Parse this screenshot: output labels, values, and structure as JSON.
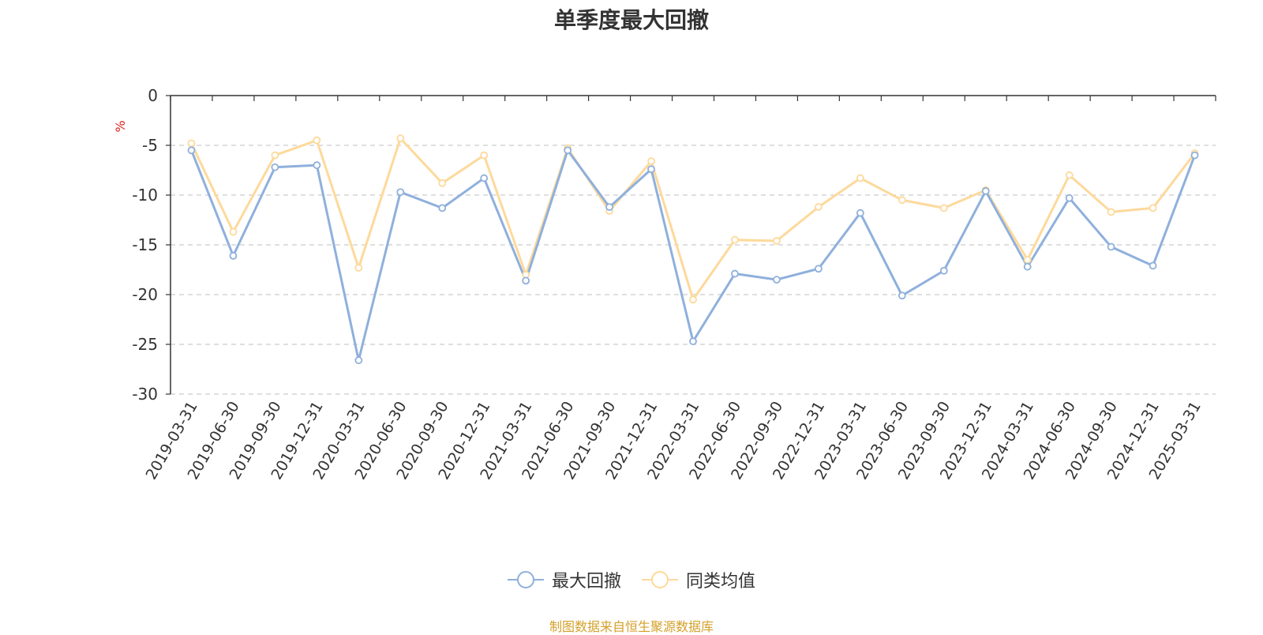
{
  "chart_data": {
    "type": "line",
    "title": "单季度最大回撤",
    "ylabel": "%",
    "ylim": [
      -30,
      0
    ],
    "yticks": [
      0,
      -5,
      -10,
      -15,
      -20,
      -25,
      -30
    ],
    "grid": true,
    "legend_position": "bottom",
    "categories": [
      "2019-03-31",
      "2019-06-30",
      "2019-09-30",
      "2019-12-31",
      "2020-03-31",
      "2020-06-30",
      "2020-09-30",
      "2020-12-31",
      "2021-03-31",
      "2021-06-30",
      "2021-09-30",
      "2021-12-31",
      "2022-03-31",
      "2022-06-30",
      "2022-09-30",
      "2022-12-31",
      "2023-03-31",
      "2023-06-30",
      "2023-09-30",
      "2023-12-31",
      "2024-03-31",
      "2024-06-30",
      "2024-09-30",
      "2024-12-31",
      "2025-03-31"
    ],
    "series": [
      {
        "name": "最大回撤",
        "color": "#8fb0dc",
        "values": [
          -5.5,
          -16.1,
          -7.2,
          -7.0,
          -26.6,
          -9.7,
          -11.3,
          -8.3,
          -18.6,
          -5.5,
          -11.2,
          -7.4,
          -24.7,
          -17.9,
          -18.5,
          -17.4,
          -11.8,
          -20.1,
          -17.6,
          -9.6,
          -17.2,
          -10.3,
          -15.2,
          -17.1,
          -6.0
        ]
      },
      {
        "name": "同类均值",
        "color": "#fdd99b",
        "values": [
          -4.8,
          -13.7,
          -6.0,
          -4.5,
          -17.3,
          -4.3,
          -8.8,
          -6.0,
          -18.0,
          -5.3,
          -11.6,
          -6.6,
          -20.5,
          -14.5,
          -14.6,
          -11.2,
          -8.3,
          -10.5,
          -11.3,
          -9.5,
          -16.5,
          -8.0,
          -11.7,
          -11.3,
          -5.8
        ]
      }
    ]
  },
  "source_note": "制图数据来自恒生聚源数据库"
}
